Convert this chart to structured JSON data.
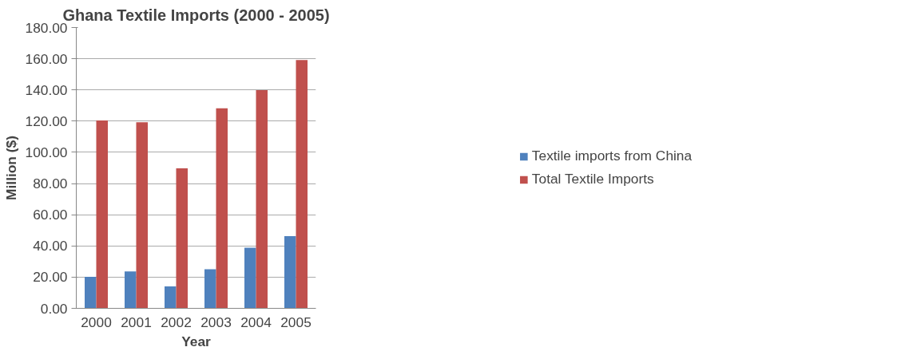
{
  "chart_data": {
    "type": "bar",
    "title": "Ghana Textile Imports (2000 - 2005)",
    "xlabel": "Year",
    "ylabel": "Million ($)",
    "categories": [
      "2000",
      "2001",
      "2002",
      "2003",
      "2004",
      "2005"
    ],
    "series": [
      {
        "name": "Textile imports from China",
        "color": "#4f81bd",
        "values": [
          20.2,
          23.6,
          14.0,
          25.0,
          38.8,
          46.3
        ]
      },
      {
        "name": "Total Textile Imports",
        "color": "#c0504d",
        "values": [
          120.4,
          119.3,
          89.7,
          128.2,
          139.9,
          159.2
        ]
      }
    ],
    "ylim": [
      0,
      180
    ],
    "yticks": [
      {
        "value": 0,
        "label": "0.00"
      },
      {
        "value": 20,
        "label": "20.00"
      },
      {
        "value": 40,
        "label": "40.00"
      },
      {
        "value": 60,
        "label": "60.00"
      },
      {
        "value": 80,
        "label": "80.00"
      },
      {
        "value": 100,
        "label": "100.00"
      },
      {
        "value": 120,
        "label": "120.00"
      },
      {
        "value": 140,
        "label": "140.00"
      },
      {
        "value": 160,
        "label": "160.00"
      },
      {
        "value": 180,
        "label": "180.00"
      }
    ],
    "grid": "y",
    "legend": "right"
  }
}
